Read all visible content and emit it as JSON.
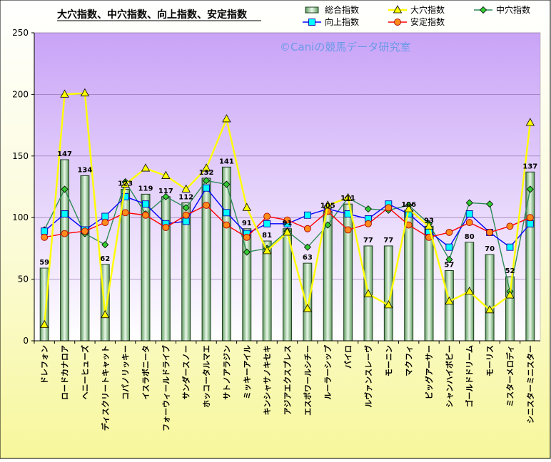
{
  "chart_data": {
    "type": "bar",
    "title": "大穴指数、中穴指数、向上指数、安定指数",
    "watermark": "©Caniの競馬データ研究室",
    "ylim": [
      0,
      250
    ],
    "yticks": [
      0,
      50,
      100,
      150,
      200,
      250
    ],
    "grid": true,
    "legend_position": "top-right",
    "categories": [
      "ドレフォン",
      "ロードカナロア",
      "ヘニーヒューズ",
      "ディスクリートキャット",
      "コパノリッキー",
      "イスラボニータ",
      "フォーウィールドライブ",
      "サンダースノー",
      "ホッコータルマエ",
      "サトノアラジン",
      "ミッキーアイル",
      "キンシャサノキセキ",
      "アジアエクスプレス",
      "エスポワールシチー",
      "ルーラーシップ",
      "パイロ",
      "ルヴァンスレーヴ",
      "モーニン",
      "マクフィ",
      "ビッグアーサー",
      "シャンハイボビー",
      "ゴールドドリーム",
      "モーリス",
      "ミスターメロディ",
      "シニスターミニスター"
    ],
    "series": [
      {
        "name": "総合指数",
        "kind": "bar",
        "color": "#8fd08f",
        "values": [
          59,
          147,
          134,
          62,
          123,
          119,
          117,
          112,
          132,
          141,
          91,
          81,
          91,
          63,
          105,
          111,
          77,
          77,
          106,
          93,
          57,
          80,
          70,
          52,
          137
        ]
      },
      {
        "name": "大穴指数",
        "kind": "line",
        "color": "#ffff00",
        "marker": "triangle",
        "values": [
          13,
          200,
          201,
          21,
          127,
          140,
          134,
          123,
          140,
          180,
          108,
          73,
          88,
          26,
          110,
          116,
          38,
          29,
          107,
          93,
          32,
          40,
          25,
          37,
          177
        ]
      },
      {
        "name": "中穴指数",
        "kind": "line",
        "color": "#2e8b57",
        "marker": "diamond",
        "values": [
          90,
          123,
          87,
          78,
          129,
          103,
          117,
          108,
          130,
          127,
          72,
          75,
          89,
          76,
          94,
          116,
          107,
          106,
          110,
          95,
          66,
          112,
          111,
          40,
          123
        ]
      },
      {
        "name": "向上指数",
        "kind": "line",
        "color": "#0000ff",
        "marker": "square",
        "values": [
          89,
          103,
          90,
          101,
          117,
          111,
          95,
          97,
          124,
          104,
          87,
          95,
          95,
          102,
          107,
          103,
          99,
          111,
          103,
          89,
          76,
          103,
          88,
          76,
          95
        ]
      },
      {
        "name": "安定指数",
        "kind": "line",
        "color": "#ff0000",
        "marker": "circle",
        "values": [
          84,
          87,
          89,
          96,
          104,
          102,
          92,
          102,
          110,
          94,
          84,
          101,
          98,
          91,
          105,
          90,
          95,
          108,
          94,
          84,
          88,
          96,
          88,
          93,
          100
        ]
      }
    ]
  }
}
